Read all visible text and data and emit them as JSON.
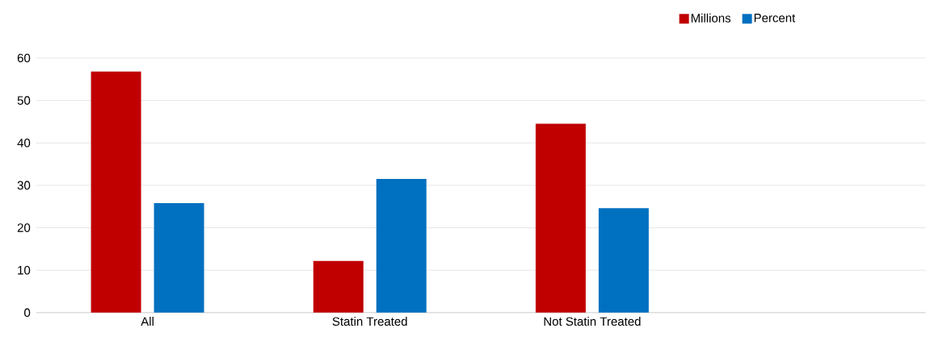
{
  "chart_data": {
    "type": "bar",
    "categories": [
      "All",
      "Statin Treated",
      "Not Statin Treated",
      null
    ],
    "series": [
      {
        "name": "Millions",
        "color": "#c00000",
        "values": [
          56.8,
          12.2,
          44.5,
          null
        ]
      },
      {
        "name": "Percent",
        "color": "#0070c0",
        "values": [
          25.8,
          31.5,
          24.6,
          null
        ]
      }
    ],
    "ylim": [
      0,
      60
    ],
    "yticks": [
      0,
      10,
      20,
      30,
      40,
      50,
      60
    ],
    "grid": "y",
    "legend": "top right"
  }
}
